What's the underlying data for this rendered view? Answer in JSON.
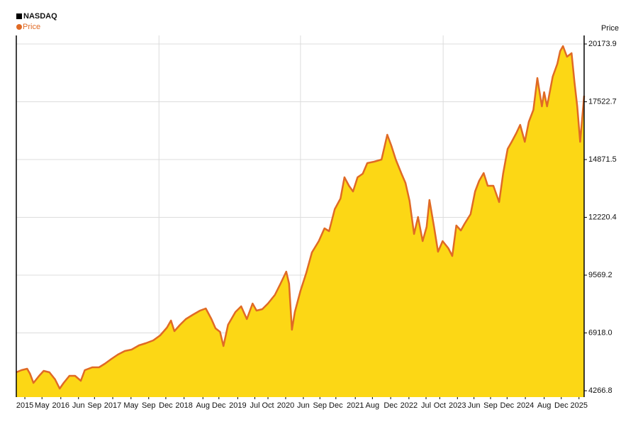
{
  "chart_data": {
    "type": "area",
    "title": "NASDAQ",
    "y_axis_label": "Price",
    "x": [
      2015.35,
      2015.44,
      2015.54,
      2015.59,
      2015.65,
      2015.75,
      2015.83,
      2015.93,
      2016.03,
      2016.11,
      2016.18,
      2016.28,
      2016.38,
      2016.48,
      2016.55,
      2016.68,
      2016.8,
      2016.9,
      2017.02,
      2017.13,
      2017.25,
      2017.37,
      2017.5,
      2017.62,
      2017.75,
      2017.87,
      2017.99,
      2018.06,
      2018.12,
      2018.22,
      2018.32,
      2018.44,
      2018.57,
      2018.67,
      2018.77,
      2018.84,
      2018.92,
      2018.98,
      2019.06,
      2019.19,
      2019.29,
      2019.39,
      2019.49,
      2019.56,
      2019.66,
      2019.76,
      2019.88,
      2019.98,
      2020.08,
      2020.13,
      2020.18,
      2020.23,
      2020.33,
      2020.43,
      2020.53,
      2020.65,
      2020.75,
      2020.83,
      2020.93,
      2021.03,
      2021.1,
      2021.18,
      2021.25,
      2021.33,
      2021.42,
      2021.5,
      2021.62,
      2021.75,
      2021.85,
      2021.92,
      2022.0,
      2022.1,
      2022.17,
      2022.24,
      2022.32,
      2022.39,
      2022.47,
      2022.54,
      2022.59,
      2022.67,
      2022.74,
      2022.82,
      2022.92,
      2022.99,
      2023.06,
      2023.14,
      2023.21,
      2023.31,
      2023.39,
      2023.46,
      2023.54,
      2023.61,
      2023.71,
      2023.81,
      2023.88,
      2023.96,
      2024.03,
      2024.11,
      2024.18,
      2024.26,
      2024.33,
      2024.41,
      2024.48,
      2024.56,
      2024.6,
      2024.65,
      2024.75,
      2024.83,
      2024.88,
      2024.93,
      2025.0,
      2025.08,
      2025.13,
      2025.18,
      2025.23,
      2025.3
    ],
    "series": [
      {
        "name": "Price",
        "color": "#e06a25",
        "fill": "#fcd715",
        "values": [
          5114,
          5211,
          5276,
          5049,
          4626,
          4951,
          5179,
          5114,
          4788,
          4365,
          4626,
          4951,
          4951,
          4723,
          5211,
          5341,
          5341,
          5504,
          5732,
          5927,
          6089,
          6155,
          6350,
          6447,
          6577,
          6805,
          7163,
          7488,
          7000,
          7293,
          7553,
          7748,
          7944,
          8041,
          7553,
          7130,
          6968,
          6317,
          7293,
          7879,
          8139,
          7553,
          8269,
          7944,
          8009,
          8269,
          8659,
          9180,
          9733,
          9180,
          7065,
          7879,
          8855,
          9668,
          10611,
          11132,
          11717,
          11587,
          12595,
          13083,
          14059,
          13668,
          13409,
          14059,
          14222,
          14710,
          14775,
          14873,
          16011,
          15523,
          14873,
          14222,
          13799,
          12986,
          11457,
          12238,
          11132,
          11782,
          13018,
          11782,
          10644,
          11132,
          10806,
          10448,
          11847,
          11620,
          11945,
          12368,
          13409,
          13897,
          14254,
          13668,
          13668,
          12921,
          14222,
          15361,
          15686,
          16076,
          16467,
          15686,
          16597,
          17150,
          18614,
          17312,
          17963,
          17312,
          18679,
          19264,
          19850,
          20077,
          19589,
          19752,
          18451,
          17312,
          15686,
          17800
        ]
      }
    ],
    "xlim": [
      2015.35,
      2025.3
    ],
    "xticks": [
      {
        "value": 2015.5,
        "label": "2015"
      },
      {
        "value": 2015.8,
        "label": "May"
      },
      {
        "value": 2016.13,
        "label": "2016"
      },
      {
        "value": 2016.44,
        "label": "Jun"
      },
      {
        "value": 2016.72,
        "label": "Sep"
      },
      {
        "value": 2017.04,
        "label": "2017"
      },
      {
        "value": 2017.36,
        "label": "May"
      },
      {
        "value": 2017.67,
        "label": "Sep"
      },
      {
        "value": 2017.97,
        "label": "Dec"
      },
      {
        "value": 2018.29,
        "label": "2018"
      },
      {
        "value": 2018.62,
        "label": "Aug"
      },
      {
        "value": 2018.9,
        "label": "Dec"
      },
      {
        "value": 2019.23,
        "label": "2019"
      },
      {
        "value": 2019.53,
        "label": "Jul"
      },
      {
        "value": 2019.76,
        "label": "Oct"
      },
      {
        "value": 2020.07,
        "label": "2020"
      },
      {
        "value": 2020.38,
        "label": "Jun"
      },
      {
        "value": 2020.67,
        "label": "Sep"
      },
      {
        "value": 2020.95,
        "label": "Dec"
      },
      {
        "value": 2021.29,
        "label": "2021"
      },
      {
        "value": 2021.59,
        "label": "Aug"
      },
      {
        "value": 2021.91,
        "label": "Dec"
      },
      {
        "value": 2022.23,
        "label": "2022"
      },
      {
        "value": 2022.53,
        "label": "Jul"
      },
      {
        "value": 2022.77,
        "label": "Oct"
      },
      {
        "value": 2023.08,
        "label": "2023"
      },
      {
        "value": 2023.37,
        "label": "Jun"
      },
      {
        "value": 2023.66,
        "label": "Sep"
      },
      {
        "value": 2023.95,
        "label": "Dec"
      },
      {
        "value": 2024.27,
        "label": "2024"
      },
      {
        "value": 2024.6,
        "label": "Aug"
      },
      {
        "value": 2024.9,
        "label": "Dec"
      },
      {
        "value": 2025.21,
        "label": "2025"
      }
    ],
    "xgrid": [
      2017.85,
      2020.33,
      2022.83
    ],
    "ylim": [
      3975,
      20565
    ],
    "yticks": [
      4266.8,
      {
        "value": 6918.0,
        "label": "6918.0"
      },
      9569.2,
      12220.4,
      14871.5,
      17522.7,
      20173.9
    ],
    "grid": true
  }
}
